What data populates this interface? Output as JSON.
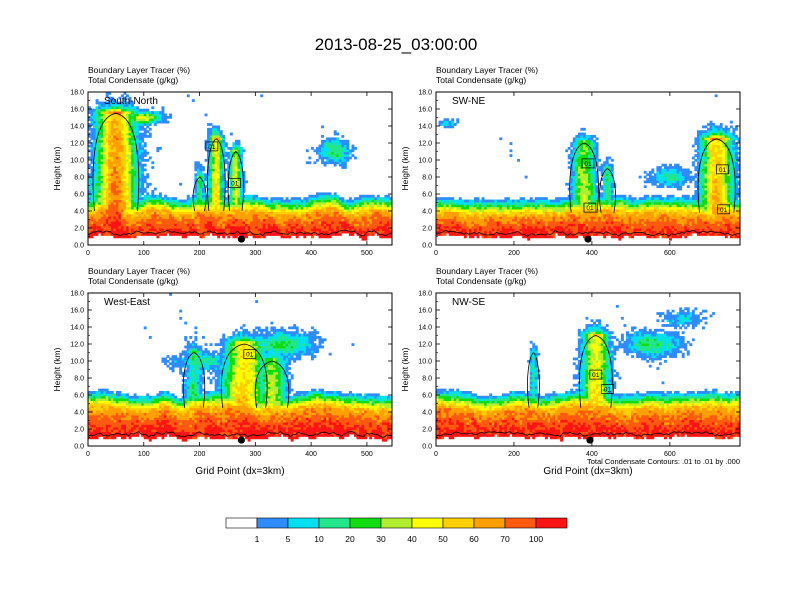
{
  "title": "2013-08-25_03:00:00",
  "contour_note": "Total Condensate Contours: .01 to .01 by .000",
  "colorbar": {
    "colors": [
      "#ffffff",
      "#2e8cff",
      "#00e0f0",
      "#22e68a",
      "#10dd10",
      "#b2ee30",
      "#ffff00",
      "#ffd000",
      "#ffa000",
      "#ff5a10",
      "#ff1414"
    ],
    "labels": [
      "1",
      "5",
      "10",
      "20",
      "30",
      "40",
      "50",
      "60",
      "70",
      "100"
    ]
  },
  "chart_data": [
    {
      "type": "heatmap",
      "panel": "South-North",
      "title_left_1": "Boundary Layer Tracer   (%)",
      "title_left_2": "Total Condensate   (g/kg)",
      "ylabel": "Height (km)",
      "xlabel": "",
      "xlim": [
        0,
        545
      ],
      "ylim": [
        0,
        18
      ],
      "xticks": [
        0,
        100,
        200,
        300,
        400,
        500
      ],
      "yticks": [
        "0.0",
        "2.0",
        "4.0",
        "6.0",
        "8.0",
        "10.0",
        "12.0",
        "14.0",
        "16.0",
        "18.0"
      ],
      "marker_x": 275,
      "boxes": [
        {
          "label": "01",
          "x": 222,
          "y": 11.6
        },
        {
          "label": "01",
          "x": 263,
          "y": 7.3
        }
      ],
      "plumes": [
        [
          50,
          35,
          15.5,
          0.96
        ],
        [
          230,
          12,
          12.5,
          0.75
        ],
        [
          265,
          10,
          11,
          0.65
        ],
        [
          200,
          8,
          8,
          0.5
        ]
      ],
      "anvils": [
        [
          440,
          30,
          11,
          1.5,
          0.35
        ],
        [
          100,
          30,
          15,
          0.7,
          0.6
        ]
      ],
      "base_h": 4.0
    },
    {
      "type": "heatmap",
      "panel": "SW-NE",
      "title_left_1": "Boundary Layer Tracer   (%)",
      "title_left_2": "Total Condensate   (g/kg)",
      "ylabel": "Height (km)",
      "xlabel": "",
      "xlim": [
        0,
        780
      ],
      "ylim": [
        0,
        18
      ],
      "xticks": [
        0,
        200,
        400,
        600
      ],
      "yticks": [
        "0.0",
        "2.0",
        "4.0",
        "6.0",
        "8.0",
        "10.0",
        "12.0",
        "14.0",
        "16.0",
        "18.0"
      ],
      "marker_x": 390,
      "boxes": [
        {
          "label": "01",
          "x": 390,
          "y": 9.6
        },
        {
          "label": "01",
          "x": 395,
          "y": 4.4
        },
        {
          "label": "01",
          "x": 735,
          "y": 8.9
        },
        {
          "label": "01",
          "x": 738,
          "y": 4.2
        }
      ],
      "plumes": [
        [
          380,
          30,
          12,
          0.6
        ],
        [
          720,
          40,
          12.5,
          0.85
        ],
        [
          440,
          15,
          9,
          0.45
        ]
      ],
      "anvils": [
        [
          30,
          20,
          14.3,
          0.5,
          0.25
        ],
        [
          600,
          60,
          8,
          1.2,
          0.3
        ]
      ],
      "base_h": 3.8
    },
    {
      "type": "heatmap",
      "panel": "West-East",
      "title_left_1": "Boundary Layer Tracer   (%)",
      "title_left_2": "Total Condensate   (g/kg)",
      "ylabel": "Height (km)",
      "xlabel": "Grid Point (dx=3km)",
      "xlim": [
        0,
        545
      ],
      "ylim": [
        0,
        18
      ],
      "xticks": [
        0,
        100,
        200,
        300,
        400,
        500
      ],
      "yticks": [
        "0.0",
        "2.0",
        "4.0",
        "6.0",
        "8.0",
        "10.0",
        "12.0",
        "14.0",
        "16.0",
        "18.0"
      ],
      "marker_x": 275,
      "boxes": [
        {
          "label": "01",
          "x": 290,
          "y": 10.8
        }
      ],
      "plumes": [
        [
          280,
          35,
          12,
          0.8
        ],
        [
          330,
          25,
          10,
          0.6
        ],
        [
          190,
          15,
          11,
          0.4
        ]
      ],
      "anvils": [
        [
          350,
          60,
          12,
          1.5,
          0.35
        ],
        [
          200,
          50,
          10,
          1.0,
          0.3
        ]
      ],
      "base_h": 4.5
    },
    {
      "type": "heatmap",
      "panel": "NW-SE",
      "title_left_1": "Boundary Layer Tracer   (%)",
      "title_left_2": "Total Condensate   (g/kg)",
      "ylabel": "Height (km)",
      "xlabel": "Grid Point (dx=3km)",
      "xlim": [
        0,
        780
      ],
      "ylim": [
        0,
        18
      ],
      "xticks": [
        0,
        200,
        400,
        600
      ],
      "yticks": [
        "0.0",
        "2.0",
        "4.0",
        "6.0",
        "8.0",
        "10.0",
        "12.0",
        "14.0",
        "16.0",
        "18.0"
      ],
      "marker_x": 395,
      "boxes": [
        {
          "label": "01",
          "x": 410,
          "y": 8.4
        },
        {
          "label": "01",
          "x": 440,
          "y": 6.7
        }
      ],
      "plumes": [
        [
          410,
          35,
          13,
          0.75
        ],
        [
          250,
          10,
          11,
          0.35
        ]
      ],
      "anvils": [
        [
          560,
          80,
          12,
          1.5,
          0.35
        ],
        [
          630,
          50,
          15,
          1.2,
          0.25
        ]
      ],
      "base_h": 4.5
    }
  ]
}
